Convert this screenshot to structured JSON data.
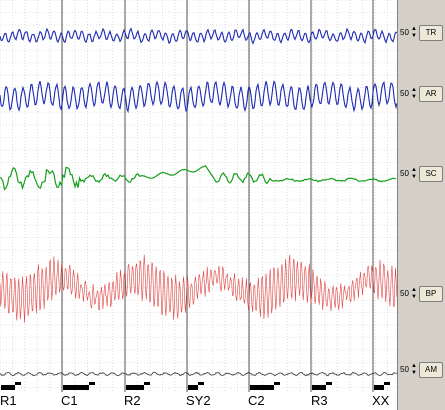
{
  "channels": [
    {
      "id": "TR",
      "label": "TR",
      "scale": "50",
      "color": "#1c2ab5"
    },
    {
      "id": "AR",
      "label": "AR",
      "scale": "50",
      "color": "#1c2ab5"
    },
    {
      "id": "SC",
      "label": "SC",
      "scale": "50",
      "color": "#159e1c"
    },
    {
      "id": "BP",
      "label": "BP",
      "scale": "50",
      "color": "#e04545"
    },
    {
      "id": "AM",
      "label": "AM",
      "scale": "50",
      "color": "#333333"
    }
  ],
  "segments": [
    "R1",
    "C1",
    "R2",
    "SY2",
    "C2",
    "R3",
    "XX"
  ],
  "icons": {
    "spin_up": "up-arrow-icon",
    "spin_down": "down-arrow-icon"
  }
}
